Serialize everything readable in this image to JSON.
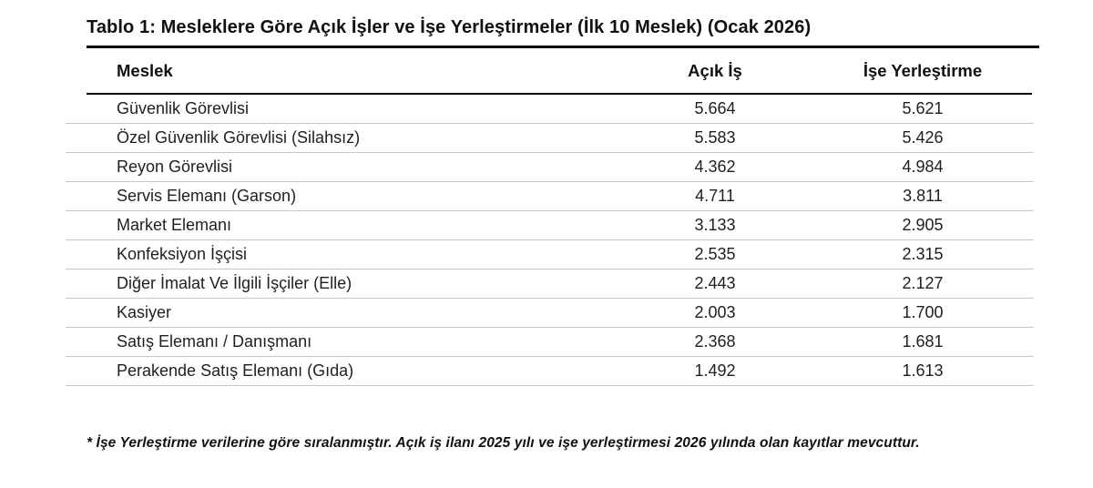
{
  "table": {
    "title": "Tablo 1: Mesleklere Göre Açık İşler ve İşe Yerleştirmeler (İlk 10 Meslek) (Ocak 2026)",
    "columns": {
      "meslek": "Meslek",
      "acik_is": "Açık İş",
      "ise_yerlestirme": "İşe Yerleştirme"
    },
    "rows": [
      {
        "meslek": "Güvenlik Görevlisi",
        "acik_is": "5.664",
        "ise_yerlestirme": "5.621"
      },
      {
        "meslek": "Özel Güvenlik Görevlisi (Silahsız)",
        "acik_is": "5.583",
        "ise_yerlestirme": "5.426"
      },
      {
        "meslek": "Reyon Görevlisi",
        "acik_is": "4.362",
        "ise_yerlestirme": "4.984"
      },
      {
        "meslek": "Servis Elemanı (Garson)",
        "acik_is": "4.711",
        "ise_yerlestirme": "3.811"
      },
      {
        "meslek": "Market Elemanı",
        "acik_is": "3.133",
        "ise_yerlestirme": "2.905"
      },
      {
        "meslek": "Konfeksiyon İşçisi",
        "acik_is": "2.535",
        "ise_yerlestirme": "2.315"
      },
      {
        "meslek": "Diğer İmalat Ve İlgili İşçiler (Elle)",
        "acik_is": "2.443",
        "ise_yerlestirme": "2.127"
      },
      {
        "meslek": "Kasiyer",
        "acik_is": "2.003",
        "ise_yerlestirme": "1.700"
      },
      {
        "meslek": "Satış Elemanı / Danışmanı",
        "acik_is": "2.368",
        "ise_yerlestirme": "1.681"
      },
      {
        "meslek": "Perakende Satış Elemanı (Gıda)",
        "acik_is": "1.492",
        "ise_yerlestirme": "1.613"
      }
    ],
    "footnote": "* İşe Yerleştirme verilerine göre sıralanmıştır. Açık iş ilanı 2025 yılı ve işe yerleştirmesi 2026 yılında olan kayıtlar mevcuttur."
  },
  "colors": {
    "text": "#1a1a1a",
    "rule": "#000000",
    "separator": "#c8c8c8",
    "background": "#ffffff"
  }
}
